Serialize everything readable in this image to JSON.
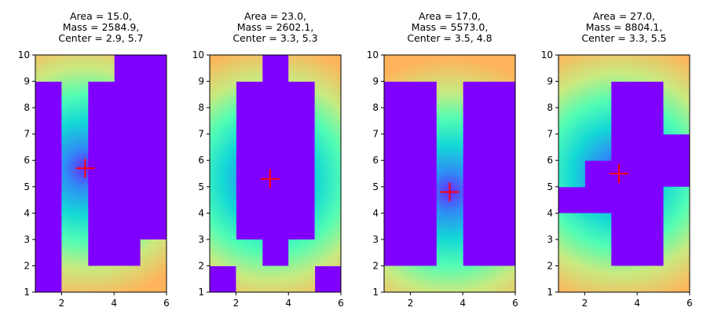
{
  "chart_data": [
    {
      "type": "heatmap",
      "title_lines": [
        "Area = 15.0,",
        "Mass = 2584.9,",
        "Center = 2.9, 5.7"
      ],
      "xlim": [
        1,
        6
      ],
      "ylim": [
        1,
        10
      ],
      "xticks": [
        "2",
        "4",
        "6"
      ],
      "yticks": [
        "1",
        "2",
        "3",
        "4",
        "5",
        "6",
        "7",
        "8",
        "9",
        "10"
      ],
      "center": [
        2.9,
        5.7
      ],
      "shape_cells": [
        [
          1,
          9,
          2,
          10
        ],
        [
          2,
          9,
          3,
          10
        ],
        [
          2,
          8,
          3,
          9
        ],
        [
          2,
          7,
          3,
          8
        ],
        [
          2,
          6,
          3,
          7
        ],
        [
          2,
          5,
          3,
          6
        ],
        [
          2,
          4,
          3,
          5
        ],
        [
          2,
          3,
          3,
          4
        ],
        [
          2,
          2,
          3,
          3
        ],
        [
          2,
          1,
          3,
          2
        ],
        [
          3,
          1,
          4,
          2
        ],
        [
          4,
          1,
          5,
          2
        ],
        [
          5,
          1,
          6,
          2
        ],
        [
          5,
          2,
          6,
          3
        ],
        [
          3,
          9,
          4,
          10
        ]
      ]
    },
    {
      "type": "heatmap",
      "title_lines": [
        "Area = 23.0,",
        "Mass = 2602.1,",
        "Center = 3.3, 5.3"
      ],
      "xlim": [
        1,
        6
      ],
      "ylim": [
        1,
        10
      ],
      "xticks": [
        "2",
        "4",
        "6"
      ],
      "yticks": [
        "1",
        "2",
        "3",
        "4",
        "5",
        "6",
        "7",
        "8",
        "9",
        "10"
      ],
      "center": [
        3.3,
        5.3
      ],
      "shape_cells": [
        [
          1,
          2,
          2,
          10
        ],
        [
          2,
          9,
          3,
          10
        ],
        [
          4,
          9,
          5,
          10
        ],
        [
          5,
          9,
          6,
          10
        ],
        [
          5,
          8,
          6,
          9
        ],
        [
          5,
          7,
          6,
          8
        ],
        [
          5,
          6,
          6,
          7
        ],
        [
          5,
          5,
          6,
          6
        ],
        [
          5,
          4,
          6,
          5
        ],
        [
          5,
          3,
          6,
          4
        ],
        [
          5,
          2,
          6,
          3
        ],
        [
          2,
          1,
          3,
          2
        ],
        [
          3,
          1,
          4,
          2
        ],
        [
          4,
          1,
          5,
          2
        ],
        [
          2,
          2,
          3,
          3
        ],
        [
          4,
          2,
          5,
          3
        ]
      ]
    },
    {
      "type": "heatmap",
      "title_lines": [
        "Area = 17.0,",
        "Mass = 5573.0,",
        "Center = 3.5, 4.8"
      ],
      "xlim": [
        1,
        6
      ],
      "ylim": [
        1,
        10
      ],
      "xticks": [
        "2",
        "4",
        "6"
      ],
      "yticks": [
        "1",
        "2",
        "3",
        "4",
        "5",
        "6",
        "7",
        "8",
        "9",
        "10"
      ],
      "center": [
        3.5,
        4.8
      ],
      "shape_cells": [
        [
          1,
          9,
          6,
          10
        ],
        [
          3,
          2,
          4,
          9
        ],
        [
          1,
          1,
          6,
          2
        ]
      ]
    },
    {
      "type": "heatmap",
      "title_lines": [
        "Area = 27.0,",
        "Mass = 8804.1,",
        "Center = 3.3, 5.5"
      ],
      "xlim": [
        1,
        6
      ],
      "ylim": [
        1,
        10
      ],
      "xticks": [
        "2",
        "4",
        "6"
      ],
      "yticks": [
        "1",
        "2",
        "3",
        "4",
        "5",
        "6",
        "7",
        "8",
        "9",
        "10"
      ],
      "center": [
        3.3,
        5.5
      ],
      "shape_cells": [
        [
          1,
          9,
          6,
          10
        ],
        [
          1,
          5,
          2,
          9
        ],
        [
          2,
          6,
          3,
          9
        ],
        [
          5,
          7,
          6,
          9
        ],
        [
          5,
          8,
          6,
          9
        ],
        [
          1,
          1,
          6,
          2
        ],
        [
          5,
          2,
          6,
          5
        ],
        [
          1,
          2,
          3,
          4
        ]
      ]
    }
  ]
}
